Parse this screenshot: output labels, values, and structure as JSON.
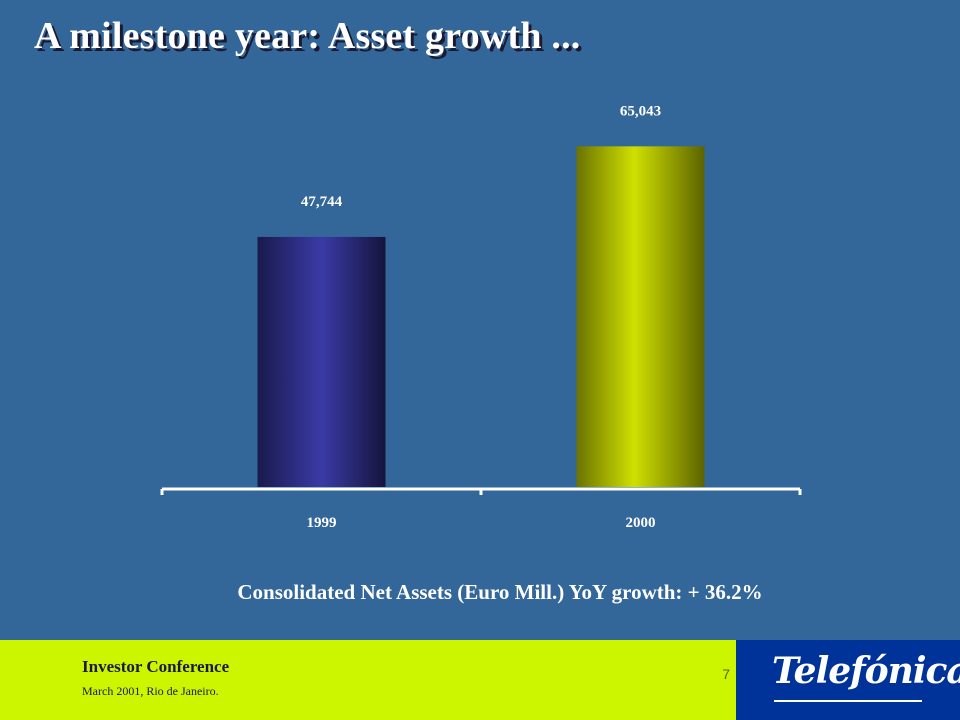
{
  "slide": {
    "title": "A  milestone year: Asset growth ...",
    "caption": "Consolidated Net Assets (Euro Mill.) YoY growth: + 36.2%"
  },
  "chart_data": {
    "type": "bar",
    "categories": [
      "1999",
      "2000"
    ],
    "values": [
      47744,
      65043
    ],
    "value_labels": [
      "47,744",
      "65,043"
    ],
    "bar_colors": [
      "#333399",
      "#c8d800"
    ],
    "ylim": [
      0,
      80000
    ],
    "grid": false,
    "legend": "none"
  },
  "footer": {
    "event": "Investor Conference",
    "subtitle": "March 2001, Rio de Janeiro.",
    "page_number": "7",
    "logo": "Telefónica"
  },
  "colors": {
    "background": "#336699",
    "footer": "#ccf500",
    "logo_box": "#003399"
  }
}
